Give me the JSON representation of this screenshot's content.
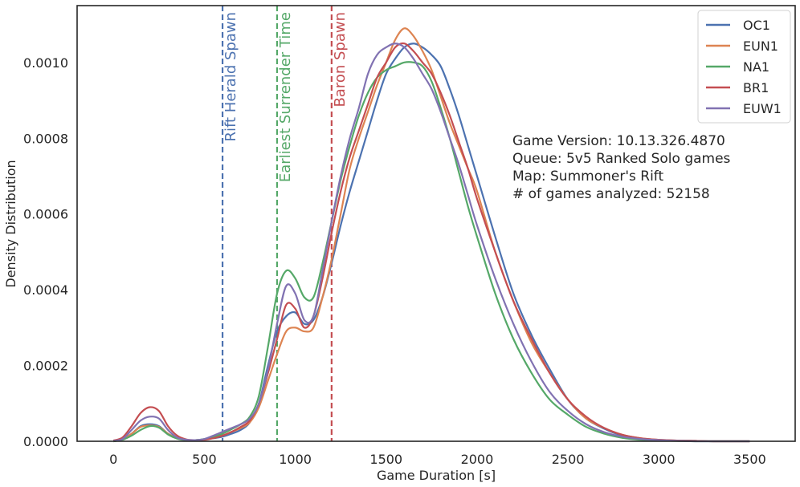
{
  "chart_data": {
    "type": "line",
    "title": "",
    "xlabel": "Game Duration [s]",
    "ylabel": "Density Distribution",
    "xlim": [
      -200,
      3750
    ],
    "ylim": [
      0,
      0.00115
    ],
    "x_ticks": [
      0,
      500,
      1000,
      1500,
      2000,
      2500,
      3000,
      3500
    ],
    "y_ticks": [
      0,
      0.0002,
      0.0004,
      0.0006,
      0.0008,
      0.001
    ],
    "x_tick_labels": [
      "0",
      "500",
      "1000",
      "1500",
      "2000",
      "2500",
      "3000",
      "3500"
    ],
    "y_tick_labels": [
      "0.0000",
      "0.0002",
      "0.0004",
      "0.0006",
      "0.0008",
      "0.0010"
    ],
    "grid": false,
    "legend_position": "top-right",
    "x": [
      0,
      50,
      100,
      150,
      200,
      250,
      300,
      350,
      400,
      450,
      500,
      550,
      600,
      650,
      700,
      750,
      800,
      850,
      900,
      950,
      1000,
      1050,
      1100,
      1150,
      1200,
      1250,
      1300,
      1350,
      1400,
      1450,
      1500,
      1550,
      1600,
      1650,
      1700,
      1750,
      1800,
      1850,
      1900,
      1950,
      2000,
      2100,
      2200,
      2300,
      2400,
      2500,
      2600,
      2700,
      2800,
      2900,
      3000,
      3100,
      3200,
      3300,
      3400,
      3500
    ],
    "series": [
      {
        "name": "OC1",
        "color": "#4c72b0",
        "values": [
          0,
          5e-06,
          2e-05,
          4e-05,
          4.5e-05,
          4e-05,
          2e-05,
          8e-06,
          3e-06,
          3e-06,
          5e-06,
          8e-06,
          1.2e-05,
          2e-05,
          3e-05,
          5e-05,
          0.0001,
          0.0002,
          0.00029,
          0.00033,
          0.00034,
          0.00031,
          0.00032,
          0.00038,
          0.00047,
          0.00057,
          0.00066,
          0.00074,
          0.00082,
          0.0009,
          0.00097,
          0.00101,
          0.00104,
          0.00105,
          0.00104,
          0.00102,
          0.00099,
          0.00093,
          0.00086,
          0.00078,
          0.0007,
          0.00054,
          0.00039,
          0.00028,
          0.00019,
          0.00011,
          6e-05,
          3.3e-05,
          1.5e-05,
          7e-06,
          3e-06,
          2e-06,
          1e-06,
          0,
          0,
          0
        ]
      },
      {
        "name": "EUN1",
        "color": "#dd8452",
        "values": [
          0,
          5e-06,
          2e-05,
          3.8e-05,
          4.2e-05,
          3.8e-05,
          2e-05,
          8e-06,
          3e-06,
          3e-06,
          5e-06,
          1e-05,
          1.5e-05,
          2.5e-05,
          3.5e-05,
          5e-05,
          9e-05,
          0.00016,
          0.00023,
          0.00029,
          0.0003,
          0.00029,
          0.0003,
          0.00038,
          0.00048,
          0.0006,
          0.00072,
          0.0008,
          0.00087,
          0.00094,
          0.001,
          0.00106,
          0.00109,
          0.00107,
          0.00103,
          0.00098,
          0.00091,
          0.00084,
          0.00078,
          0.00072,
          0.00066,
          0.0005,
          0.00037,
          0.00026,
          0.00018,
          0.00011,
          6e-05,
          3.5e-05,
          1.7e-05,
          8e-06,
          4e-06,
          2e-06,
          1e-06,
          0,
          0,
          0
        ]
      },
      {
        "name": "NA1",
        "color": "#55a868",
        "values": [
          0,
          4e-06,
          1.5e-05,
          3e-05,
          4e-05,
          3.6e-05,
          1.8e-05,
          7e-06,
          3e-06,
          3e-06,
          6e-06,
          1.2e-05,
          2e-05,
          3.2e-05,
          4.5e-05,
          6.5e-05,
          0.00012,
          0.00025,
          0.00039,
          0.00045,
          0.00043,
          0.00038,
          0.00038,
          0.00047,
          0.00058,
          0.00069,
          0.00078,
          0.00086,
          0.00092,
          0.00096,
          0.00098,
          0.00099,
          0.001,
          0.001,
          0.00099,
          0.00095,
          0.00088,
          0.0008,
          0.00071,
          0.00062,
          0.00054,
          0.00039,
          0.00027,
          0.00018,
          0.00011,
          7e-05,
          3.8e-05,
          2e-05,
          9e-06,
          4e-06,
          2e-06,
          1e-06,
          0,
          0,
          0,
          0
        ]
      },
      {
        "name": "BR1",
        "color": "#c44e52",
        "values": [
          2e-06,
          1e-05,
          4e-05,
          7.5e-05,
          9e-05,
          8e-05,
          4e-05,
          1.5e-05,
          5e-06,
          3e-06,
          4e-06,
          8e-06,
          1.5e-05,
          2.5e-05,
          3.8e-05,
          5.5e-05,
          0.0001,
          0.00018,
          0.00027,
          0.00036,
          0.00035,
          0.0003,
          0.00033,
          0.00043,
          0.00055,
          0.00066,
          0.00075,
          0.00082,
          0.00089,
          0.00096,
          0.001,
          0.00104,
          0.00105,
          0.00103,
          0.001,
          0.00097,
          0.00092,
          0.00086,
          0.00079,
          0.00072,
          0.00064,
          0.0005,
          0.00037,
          0.00027,
          0.00018,
          0.00011,
          6.5e-05,
          3.5e-05,
          1.7e-05,
          8e-06,
          4e-06,
          2e-06,
          1e-06,
          0,
          0,
          0
        ]
      },
      {
        "name": "EUW1",
        "color": "#8172b2",
        "values": [
          1e-06,
          6e-06,
          3e-05,
          5.5e-05,
          6.5e-05,
          6e-05,
          3e-05,
          1e-05,
          4e-06,
          3e-06,
          6e-06,
          1.5e-05,
          2.5e-05,
          3.5e-05,
          4.5e-05,
          6e-05,
          0.0001,
          0.00019,
          0.00031,
          0.00041,
          0.00039,
          0.00032,
          0.00033,
          0.00045,
          0.00058,
          0.0007,
          0.0008,
          0.00088,
          0.00097,
          0.00102,
          0.00104,
          0.00105,
          0.00104,
          0.00101,
          0.00097,
          0.00093,
          0.00087,
          0.0008,
          0.00073,
          0.00065,
          0.00057,
          0.00043,
          0.00031,
          0.00021,
          0.00013,
          8e-05,
          4.5e-05,
          2.4e-05,
          1.2e-05,
          6e-06,
          3e-06,
          1e-06,
          0,
          0,
          0,
          0
        ]
      }
    ],
    "vlines": [
      {
        "x": 600,
        "label": "Rift Herald Spawn",
        "color": "#4c72b0"
      },
      {
        "x": 900,
        "label": "Earliest Surrender Time",
        "color": "#55a868"
      },
      {
        "x": 1200,
        "label": "Baron Spawn",
        "color": "#c44e52"
      }
    ],
    "annotations": [
      "Game Version: 10.13.326.4870",
      "Queue: 5v5 Ranked Solo games",
      "Map: Summoner's Rift",
      "# of games analyzed: 52158"
    ]
  }
}
